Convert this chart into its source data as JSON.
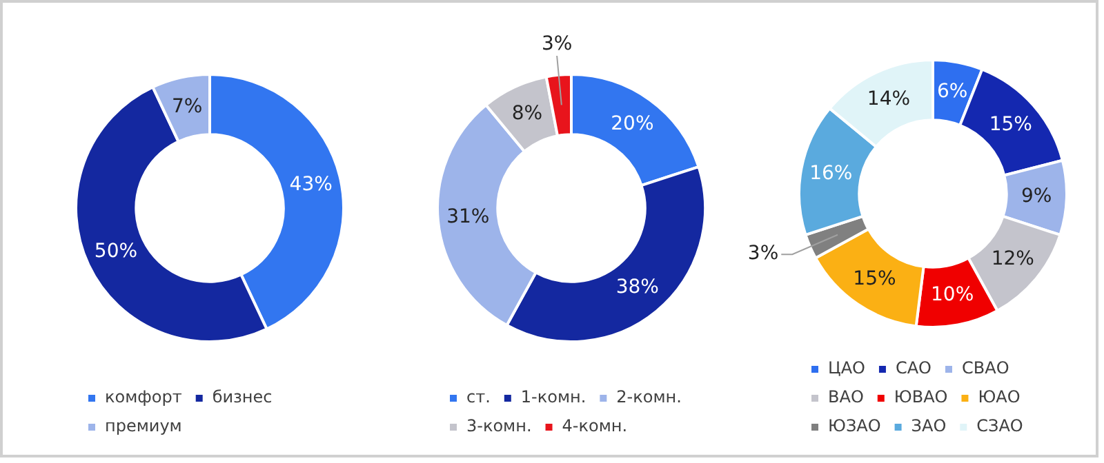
{
  "chart_data": [
    {
      "type": "donut",
      "categories": [
        "комфорт",
        "бизнес",
        "премиум"
      ],
      "values": [
        43,
        50,
        7
      ],
      "colors": [
        "#3276f0",
        "#1428a0",
        "#9db4ea"
      ],
      "value_labels": [
        "43%",
        "50%",
        "7%"
      ],
      "legend": "bottom"
    },
    {
      "type": "donut",
      "categories": [
        "ст.",
        "1-комн.",
        "2-комн.",
        "3-комн.",
        "4-комн."
      ],
      "values": [
        20,
        38,
        31,
        8,
        3
      ],
      "colors": [
        "#3276f0",
        "#1428a0",
        "#9db4ea",
        "#c4c4cc",
        "#e8141c"
      ],
      "value_labels": [
        "20%",
        "38%",
        "31%",
        "8%",
        "3%"
      ],
      "legend": "bottom"
    },
    {
      "type": "donut",
      "categories": [
        "ЦАО",
        "САО",
        "СВАО",
        "ВАО",
        "ЮВАО",
        "ЮАО",
        "ЮЗАО",
        "ЗАО",
        "СЗАО"
      ],
      "values": [
        6,
        15,
        9,
        12,
        10,
        15,
        3,
        16,
        14
      ],
      "colors": [
        "#2e6ff0",
        "#1428b0",
        "#9db4ea",
        "#c4c4cc",
        "#f00000",
        "#fbb014",
        "#808080",
        "#5aaade",
        "#e0f4f8"
      ],
      "value_labels": [
        "6%",
        "15%",
        "9%",
        "12%",
        "10%",
        "15%",
        "3%",
        "16%",
        "14%"
      ],
      "legend": "bottom"
    }
  ]
}
